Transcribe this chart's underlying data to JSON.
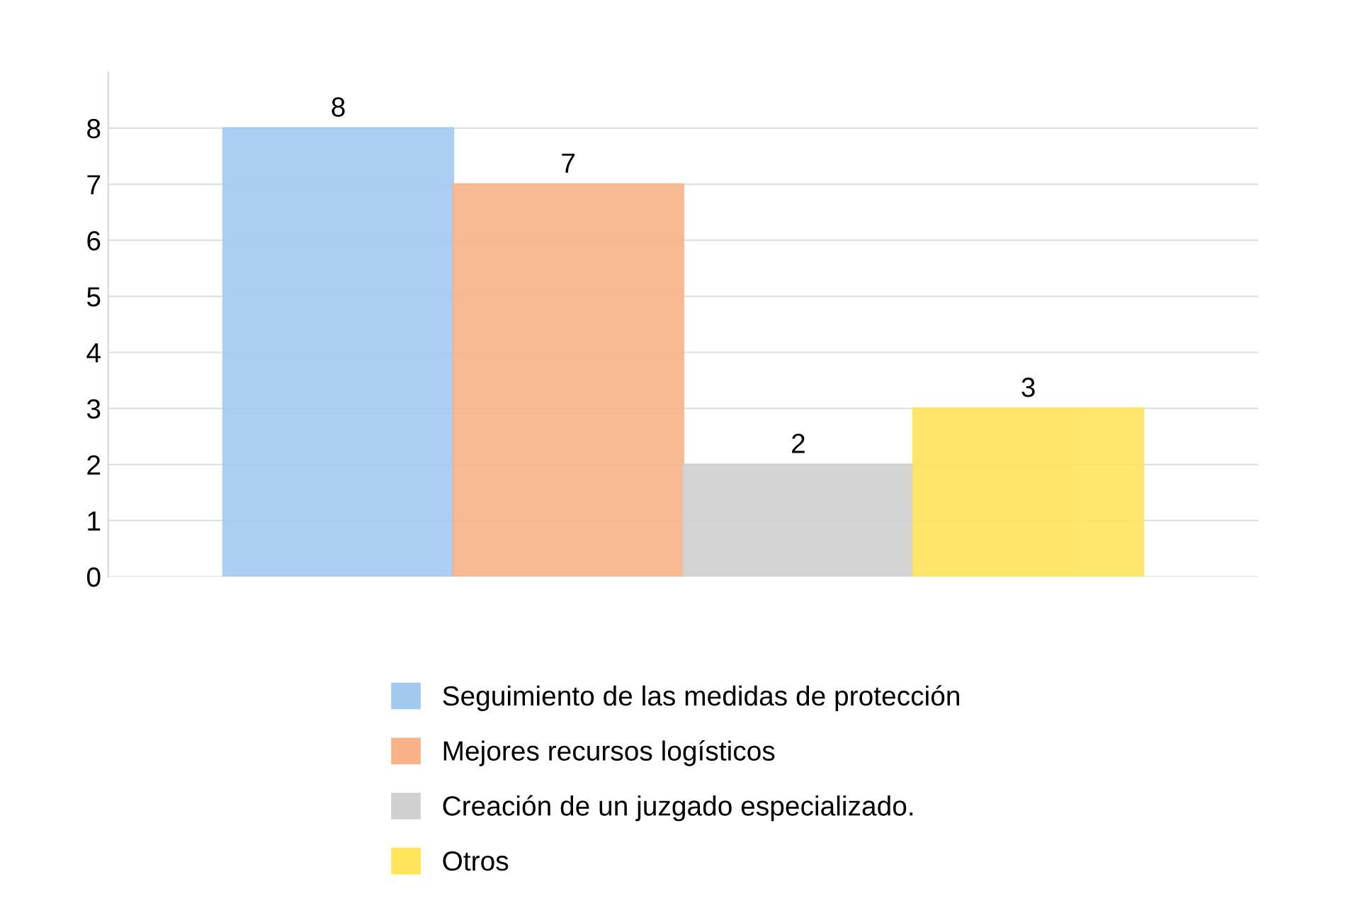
{
  "chart_data": {
    "type": "bar",
    "categories": [
      null
    ],
    "series": [
      {
        "name": "Seguimiento de las medidas de protección",
        "color": "#a3c9f1",
        "values": [
          8
        ]
      },
      {
        "name": "Mejores recursos logísticos",
        "color": "#f7b387",
        "values": [
          7
        ]
      },
      {
        "name": "Creación de un juzgado especializado.",
        "color": "#d0d0d0",
        "values": [
          2
        ]
      },
      {
        "name": "Otros",
        "color": "#ffe45c",
        "values": [
          3
        ]
      }
    ],
    "ylim": [
      0,
      9
    ],
    "yticks": [
      0,
      1,
      2,
      3,
      4,
      5,
      6,
      7,
      8
    ],
    "grid": "y",
    "legend": "bottom",
    "data_labels": true
  }
}
